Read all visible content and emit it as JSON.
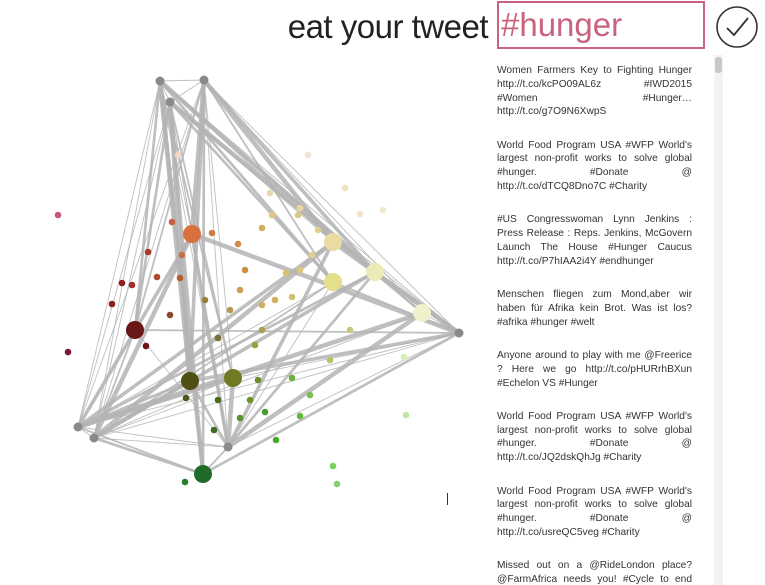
{
  "header": {
    "title": "eat your tweet",
    "query": "#hunger"
  },
  "tweets": [
    "Women Farmers Key to Fighting Hunger http://t.co/kcPO09AL6z #IWD2015 #Women #Hunger… http://t.co/g7O9N6XwpS",
    "World Food Program USA #WFP World's largest non-profit works to solve global #hunger. #Donate @ http://t.co/dTCQ8Dno7C #Charity",
    "#US Congresswoman Lynn Jenkins : Press Release : Reps. Jenkins, McGovern Launch The House #Hunger Caucus http://t.co/P7hIAA2i4Y #endhunger",
    "Menschen fliegen zum Mond,aber wir haben für Afrika kein Brot. Was ist los? #afrika #hunger #welt",
    "Anyone around to play with me @Freerice ? Here we go http://t.co/pHURrhBXun #Echelon VS #Hunger",
    "World Food Program USA #WFP World's largest non-profit works to solve global #hunger. #Donate @ http://t.co/JQ2dskQhJg #Charity",
    "World Food Program USA #WFP World's largest non-profit works to solve global #hunger. #Donate @ http://t.co/usreQC5veg #Charity",
    "Missed out on a @RideLondon place? @FarmAfrica needs you! #Cycle to end #hunger. Apply here: http://t.co/LSnbwvISRF"
  ]
}
